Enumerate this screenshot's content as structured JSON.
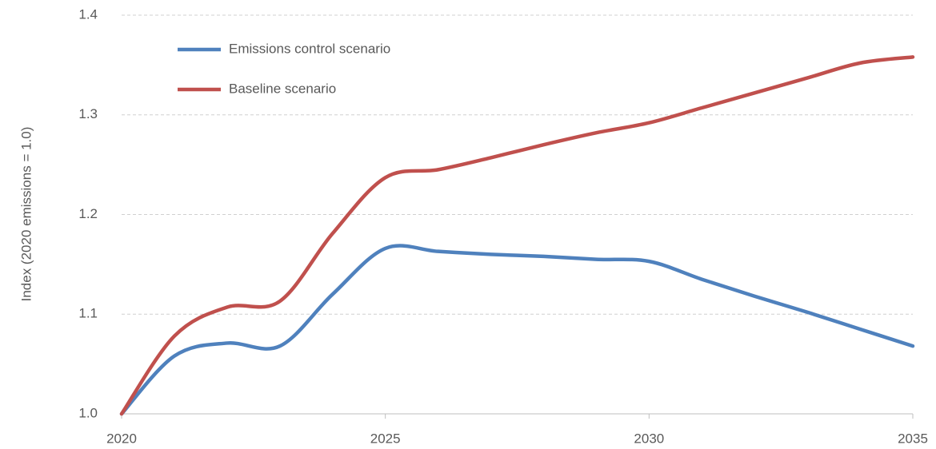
{
  "chart_data": {
    "type": "line",
    "y_label": "Index (2020 emissions = 1.0)",
    "x": [
      2020,
      2021,
      2022,
      2023,
      2024,
      2025,
      2026,
      2027,
      2028,
      2029,
      2030,
      2031,
      2032,
      2033,
      2034,
      2035
    ],
    "series": [
      {
        "name": "Emissions control scenario",
        "color": "#4f81bd",
        "values": [
          1.0,
          1.058,
          1.071,
          1.068,
          1.12,
          1.166,
          1.163,
          1.16,
          1.158,
          1.155,
          1.153,
          1.135,
          1.118,
          1.102,
          1.085,
          1.068
        ]
      },
      {
        "name": "Baseline scenario",
        "color": "#c0504d",
        "values": [
          1.0,
          1.078,
          1.107,
          1.113,
          1.181,
          1.237,
          1.245,
          1.257,
          1.27,
          1.282,
          1.292,
          1.307,
          1.322,
          1.337,
          1.352,
          1.358
        ]
      }
    ],
    "xlim": [
      2020,
      2035
    ],
    "xticks": [
      2020,
      2025,
      2030,
      2035
    ],
    "ylim": [
      1.0,
      1.4
    ],
    "yticks": [
      {
        "value": 1.0,
        "label": "1.0"
      },
      1.1,
      1.2,
      1.3,
      1.4
    ],
    "grid": true,
    "legend": "top-left"
  }
}
